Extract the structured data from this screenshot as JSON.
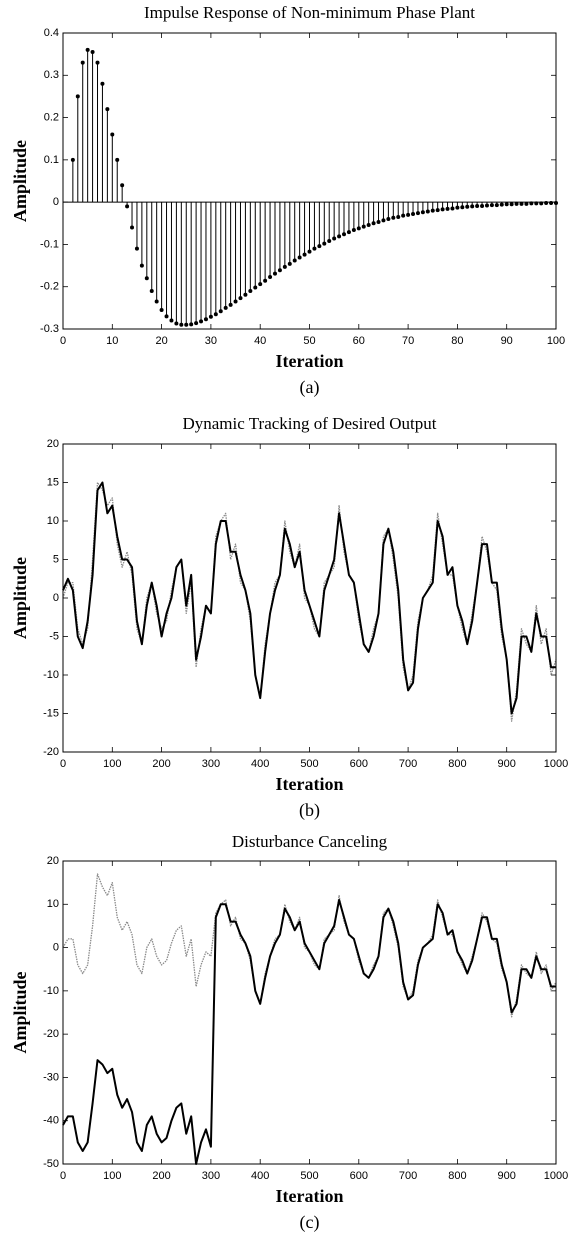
{
  "chart_data": [
    {
      "type": "stem",
      "title": "Impulse Response of Non-minimum Phase Plant",
      "x_label": "Iteration",
      "y_label": "Amplitude",
      "caption": "(a)",
      "color": "#000000",
      "x": [
        2,
        3,
        4,
        5,
        6,
        7,
        8,
        9,
        10,
        11,
        12,
        13,
        14,
        15,
        16,
        17,
        18,
        19,
        20,
        21,
        22,
        23,
        24,
        25,
        26,
        27,
        28,
        29,
        30,
        31,
        32,
        33,
        34,
        35,
        36,
        37,
        38,
        39,
        40,
        41,
        42,
        43,
        44,
        45,
        46,
        47,
        48,
        49,
        50,
        51,
        52,
        53,
        54,
        55,
        56,
        57,
        58,
        59,
        60,
        61,
        62,
        63,
        64,
        65,
        66,
        67,
        68,
        69,
        70,
        71,
        72,
        73,
        74,
        75,
        76,
        77,
        78,
        79,
        80,
        81,
        82,
        83,
        84,
        85,
        86,
        87,
        88,
        89,
        90,
        91,
        92,
        93,
        94,
        95,
        96,
        97,
        98,
        99,
        100
      ],
      "values": [
        0.1,
        0.25,
        0.33,
        0.36,
        0.355,
        0.33,
        0.28,
        0.22,
        0.16,
        0.1,
        0.04,
        -0.01,
        -0.06,
        -0.11,
        -0.15,
        -0.18,
        -0.21,
        -0.235,
        -0.255,
        -0.27,
        -0.28,
        -0.287,
        -0.29,
        -0.29,
        -0.289,
        -0.286,
        -0.282,
        -0.277,
        -0.271,
        -0.265,
        -0.258,
        -0.25,
        -0.243,
        -0.235,
        -0.227,
        -0.219,
        -0.21,
        -0.202,
        -0.194,
        -0.186,
        -0.177,
        -0.169,
        -0.161,
        -0.153,
        -0.146,
        -0.138,
        -0.131,
        -0.124,
        -0.117,
        -0.11,
        -0.104,
        -0.098,
        -0.092,
        -0.086,
        -0.081,
        -0.076,
        -0.071,
        -0.066,
        -0.062,
        -0.058,
        -0.054,
        -0.05,
        -0.047,
        -0.043,
        -0.04,
        -0.037,
        -0.035,
        -0.032,
        -0.03,
        -0.028,
        -0.026,
        -0.024,
        -0.022,
        -0.02,
        -0.019,
        -0.017,
        -0.016,
        -0.015,
        -0.013,
        -0.012,
        -0.011,
        -0.01,
        -0.009,
        -0.009,
        -0.008,
        -0.007,
        -0.007,
        -0.006,
        -0.005,
        -0.005,
        -0.004,
        -0.004,
        -0.004,
        -0.003,
        -0.003,
        -0.003,
        -0.002,
        -0.002,
        -0.002
      ],
      "xlim": [
        0,
        100
      ],
      "xticks": [
        0,
        10,
        20,
        30,
        40,
        50,
        60,
        70,
        80,
        90,
        100
      ],
      "ylim": [
        -0.3,
        0.4
      ],
      "yticks": [
        -0.3,
        -0.2,
        -0.1,
        0,
        0.1,
        0.2,
        0.3,
        0.4
      ]
    },
    {
      "type": "line",
      "title": "Dynamic Tracking of Desired Output",
      "x_label": "Iteration",
      "y_label": "Amplitude",
      "caption": "(b)",
      "x": [
        0,
        10,
        20,
        30,
        40,
        50,
        60,
        70,
        80,
        90,
        100,
        110,
        120,
        130,
        140,
        150,
        160,
        170,
        180,
        190,
        200,
        210,
        220,
        230,
        240,
        250,
        260,
        270,
        280,
        290,
        300,
        310,
        320,
        330,
        340,
        350,
        360,
        370,
        380,
        390,
        400,
        410,
        420,
        430,
        440,
        450,
        460,
        470,
        480,
        490,
        500,
        510,
        520,
        530,
        540,
        550,
        560,
        570,
        580,
        590,
        600,
        610,
        620,
        630,
        640,
        650,
        660,
        670,
        680,
        690,
        700,
        710,
        720,
        730,
        740,
        750,
        760,
        770,
        780,
        790,
        800,
        810,
        820,
        830,
        840,
        850,
        860,
        870,
        880,
        890,
        900,
        910,
        920,
        930,
        940,
        950,
        960,
        970,
        980,
        990,
        1000
      ],
      "series": [
        {
          "color": "#8a8a8a",
          "linestyle": "dotted",
          "values": [
            0,
            2,
            2,
            -4,
            -6,
            -4,
            5,
            15,
            14,
            12,
            13,
            7,
            4,
            6,
            3,
            -4,
            -6,
            0,
            2,
            -2,
            -4,
            -3,
            1,
            4,
            5,
            -2,
            2,
            -9,
            -4,
            -1,
            -2,
            8,
            10,
            11,
            5,
            7,
            2,
            1,
            -3,
            -10,
            -13,
            -6,
            -2,
            2,
            3,
            10,
            6,
            4,
            7,
            0,
            -1,
            -4,
            -5,
            2,
            3,
            4,
            12,
            6,
            3,
            2,
            -3,
            -6,
            -7,
            -4,
            -2,
            8,
            9,
            5,
            0,
            -9,
            -12,
            -10,
            -3,
            0,
            1,
            3,
            11,
            7,
            3,
            3,
            -1,
            -4,
            -6,
            -2,
            2,
            8,
            6,
            2,
            1,
            -5,
            -8,
            -16,
            -12,
            -4,
            -6,
            -7,
            -1,
            -6,
            -4,
            -10,
            -8
          ]
        },
        {
          "color": "#000000",
          "linestyle": "solid",
          "values": [
            1,
            2.5,
            1,
            -5,
            -6.5,
            -3,
            3,
            14,
            15,
            11,
            12,
            8,
            5,
            5,
            4,
            -3,
            -6,
            -1,
            2,
            -1,
            -5,
            -2,
            0,
            4,
            5,
            -1,
            3,
            -8,
            -5,
            -1,
            -2,
            7,
            10,
            10,
            6,
            6,
            3,
            1,
            -2,
            -10,
            -13,
            -7,
            -2,
            1,
            3,
            9,
            7,
            4,
            6,
            1,
            -1,
            -3,
            -5,
            1,
            3,
            5,
            11,
            7,
            3,
            2,
            -2,
            -6,
            -7,
            -5,
            -2,
            7,
            9,
            6,
            1,
            -8,
            -12,
            -11,
            -4,
            0,
            1,
            2,
            10,
            8,
            3,
            4,
            -1,
            -3,
            -6,
            -3,
            2,
            7,
            7,
            2,
            2,
            -4,
            -8,
            -15,
            -13,
            -5,
            -5,
            -7,
            -2,
            -5,
            -5,
            -9,
            -9
          ]
        }
      ],
      "xlim": [
        0,
        1000
      ],
      "xticks": [
        0,
        100,
        200,
        300,
        400,
        500,
        600,
        700,
        800,
        900,
        1000
      ],
      "ylim": [
        -20,
        20
      ],
      "yticks": [
        -20,
        -15,
        -10,
        -5,
        0,
        5,
        10,
        15,
        20
      ]
    },
    {
      "type": "line",
      "title": "Disturbance Canceling",
      "x_label": "Iteration",
      "y_label": "Amplitude",
      "caption": "(c)",
      "x": [
        0,
        10,
        20,
        30,
        40,
        50,
        60,
        70,
        80,
        90,
        100,
        110,
        120,
        130,
        140,
        150,
        160,
        170,
        180,
        190,
        200,
        210,
        220,
        230,
        240,
        250,
        260,
        270,
        280,
        290,
        300,
        310,
        320,
        330,
        340,
        350,
        360,
        370,
        380,
        390,
        400,
        410,
        420,
        430,
        440,
        450,
        460,
        470,
        480,
        490,
        500,
        510,
        520,
        530,
        540,
        550,
        560,
        570,
        580,
        590,
        600,
        610,
        620,
        630,
        640,
        650,
        660,
        670,
        680,
        690,
        700,
        710,
        720,
        730,
        740,
        750,
        760,
        770,
        780,
        790,
        800,
        810,
        820,
        830,
        840,
        850,
        860,
        870,
        880,
        890,
        900,
        910,
        920,
        930,
        940,
        950,
        960,
        970,
        980,
        990,
        1000
      ],
      "series": [
        {
          "color": "#8a8a8a",
          "linestyle": "dotted",
          "values": [
            0,
            2,
            2,
            -4,
            -6,
            -4,
            5,
            17,
            14,
            12,
            15,
            7,
            4,
            6,
            3,
            -4,
            -6,
            0,
            2,
            -2,
            -4,
            -3,
            1,
            4,
            5,
            -2,
            2,
            -9,
            -4,
            -1,
            -2,
            8,
            10,
            11,
            5,
            7,
            2,
            1,
            -3,
            -10,
            -13,
            -6,
            -2,
            2,
            3,
            10,
            6,
            4,
            7,
            0,
            -1,
            -4,
            -5,
            2,
            3,
            4,
            12,
            6,
            3,
            2,
            -3,
            -6,
            -7,
            -4,
            -2,
            8,
            9,
            5,
            0,
            -9,
            -12,
            -10,
            -3,
            0,
            1,
            3,
            11,
            7,
            3,
            3,
            -1,
            -4,
            -6,
            -2,
            2,
            8,
            6,
            2,
            1,
            -5,
            -8,
            -16,
            -12,
            -4,
            -6,
            -7,
            -1,
            -6,
            -4,
            -10,
            -8
          ]
        },
        {
          "color": "#000000",
          "linestyle": "solid",
          "values": [
            -41,
            -39,
            -39,
            -45,
            -47,
            -45,
            -36,
            -26,
            -27,
            -29,
            -28,
            -34,
            -37,
            -35,
            -38,
            -45,
            -47,
            -41,
            -39,
            -43,
            -45,
            -44,
            -40,
            -37,
            -36,
            -43,
            -39,
            -50,
            -45,
            -42,
            -46,
            7,
            10,
            10,
            6,
            6,
            3,
            1,
            -2,
            -10,
            -13,
            -7,
            -2,
            1,
            3,
            9,
            7,
            4,
            6,
            1,
            -1,
            -3,
            -5,
            1,
            3,
            5,
            11,
            7,
            3,
            2,
            -2,
            -6,
            -7,
            -5,
            -2,
            7,
            9,
            6,
            1,
            -8,
            -12,
            -11,
            -4,
            0,
            1,
            2,
            10,
            8,
            3,
            4,
            -1,
            -3,
            -6,
            -3,
            2,
            7,
            7,
            2,
            2,
            -4,
            -8,
            -15,
            -13,
            -5,
            -5,
            -7,
            -2,
            -5,
            -5,
            -9,
            -9
          ]
        }
      ],
      "xlim": [
        0,
        1000
      ],
      "xticks": [
        0,
        100,
        200,
        300,
        400,
        500,
        600,
        700,
        800,
        900,
        1000
      ],
      "ylim": [
        -50,
        20
      ],
      "yticks": [
        -50,
        -40,
        -30,
        -20,
        -10,
        0,
        10,
        20
      ]
    }
  ]
}
